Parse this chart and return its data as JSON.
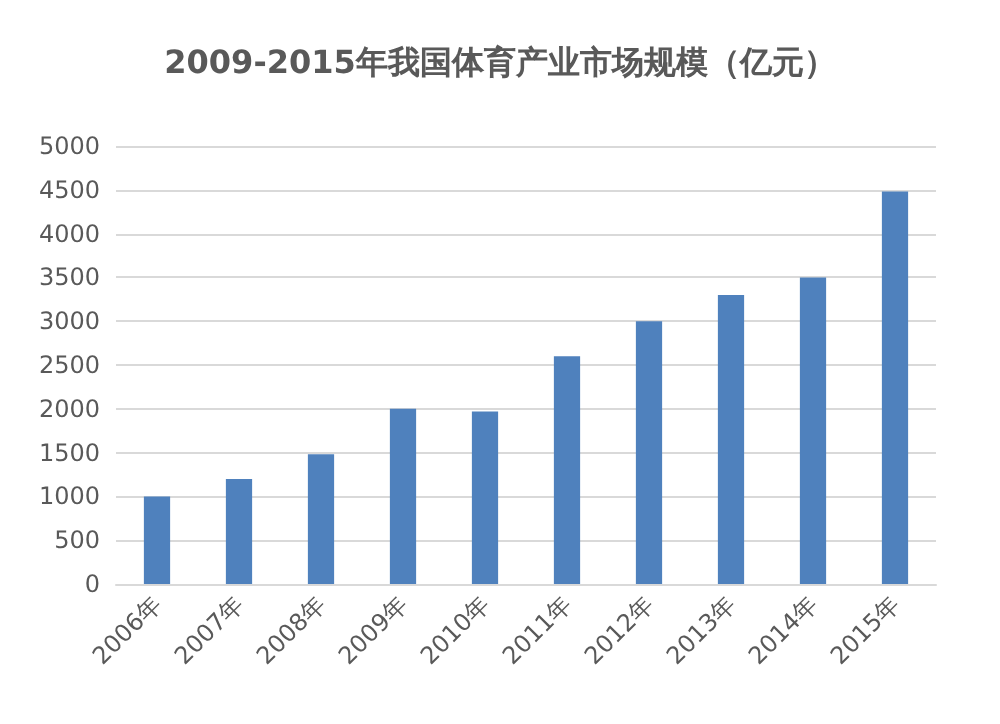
{
  "chart_data": {
    "type": "bar",
    "title": "2009-2015年我国体育产业市场规模（亿元）",
    "categories": [
      "2006年",
      "2007年",
      "2008年",
      "2009年",
      "2010年",
      "2011年",
      "2012年",
      "2013年",
      "2014年",
      "2015年"
    ],
    "values": [
      1000,
      1200,
      1480,
      2000,
      1970,
      2600,
      3000,
      3300,
      3500,
      4480
    ],
    "color": "#4f81bd",
    "ylim": [
      0,
      5000
    ],
    "yticks": [
      0,
      500,
      1000,
      1500,
      2000,
      2500,
      3000,
      3500,
      4000,
      4500,
      5000
    ],
    "grid": "y"
  }
}
